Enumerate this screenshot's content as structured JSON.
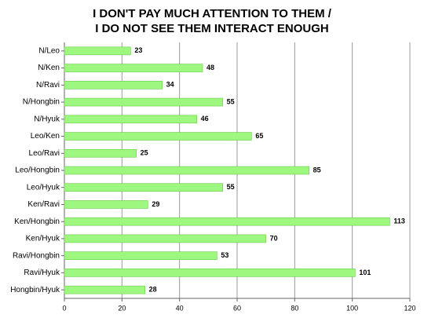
{
  "chart_data": {
    "type": "barh",
    "title": [
      "I DON'T PAY MUCH ATTENTION TO THEM /",
      "I DO NOT SEE THEM INTERACT ENOUGH"
    ],
    "categories": [
      "N/Leo",
      "N/Ken",
      "N/Ravi",
      "N/Hongbin",
      "N/Hyuk",
      "Leo/Ken",
      "Leo/Ravi",
      "Leo/Hongbin",
      "Leo/Hyuk",
      "Ken/Ravi",
      "Ken/Hongbin",
      "Ken/Hyuk",
      "Ravi/Hongbin",
      "Ravi/Hyuk",
      "Hongbin/Hyuk"
    ],
    "values": [
      23,
      48,
      34,
      55,
      46,
      65,
      25,
      85,
      55,
      29,
      113,
      70,
      53,
      101,
      28
    ],
    "color": "#9ef77f",
    "xlim": [
      0,
      120
    ],
    "xticks": [
      0,
      20,
      40,
      60,
      80,
      100,
      120
    ],
    "grid": true
  }
}
